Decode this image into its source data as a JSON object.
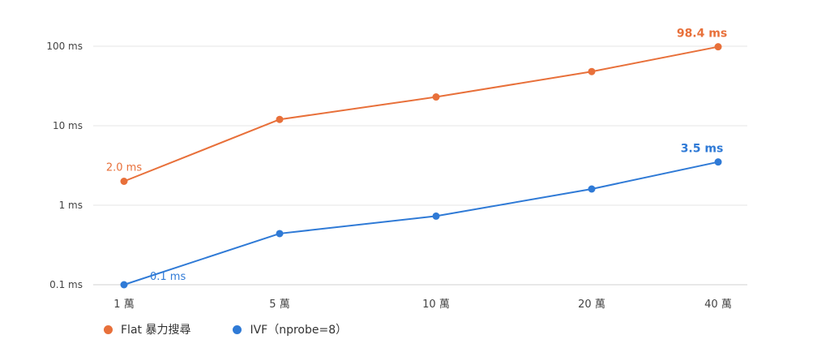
{
  "chart_data": {
    "type": "line",
    "y_scale": "log",
    "ylim": [
      0.1,
      100
    ],
    "grid": true,
    "legend_position": "bottom-left",
    "categories": [
      "1 萬",
      "5 萬",
      "10 萬",
      "20 萬",
      "40 萬"
    ],
    "y_ticks": [
      {
        "value": 0.1,
        "label": "0.1 ms"
      },
      {
        "value": 1,
        "label": "1 ms"
      },
      {
        "value": 10,
        "label": "10 ms"
      },
      {
        "value": 100,
        "label": "100 ms"
      }
    ],
    "series": [
      {
        "name": "Flat 暴力搜尋",
        "color": "#e8703a",
        "values": [
          2.0,
          12,
          23,
          48,
          98.4
        ],
        "labels": [
          {
            "index": 0,
            "text": "2.0 ms",
            "bold": false
          },
          {
            "index": 4,
            "text": "98.4 ms",
            "bold": true
          }
        ]
      },
      {
        "name": "IVF（nprobe=8）",
        "color": "#2f7ad6",
        "values": [
          0.1,
          0.44,
          0.73,
          1.6,
          3.5
        ],
        "labels": [
          {
            "index": 0,
            "text": "0.1 ms",
            "bold": false
          },
          {
            "index": 4,
            "text": "3.5 ms",
            "bold": true
          }
        ]
      }
    ]
  }
}
